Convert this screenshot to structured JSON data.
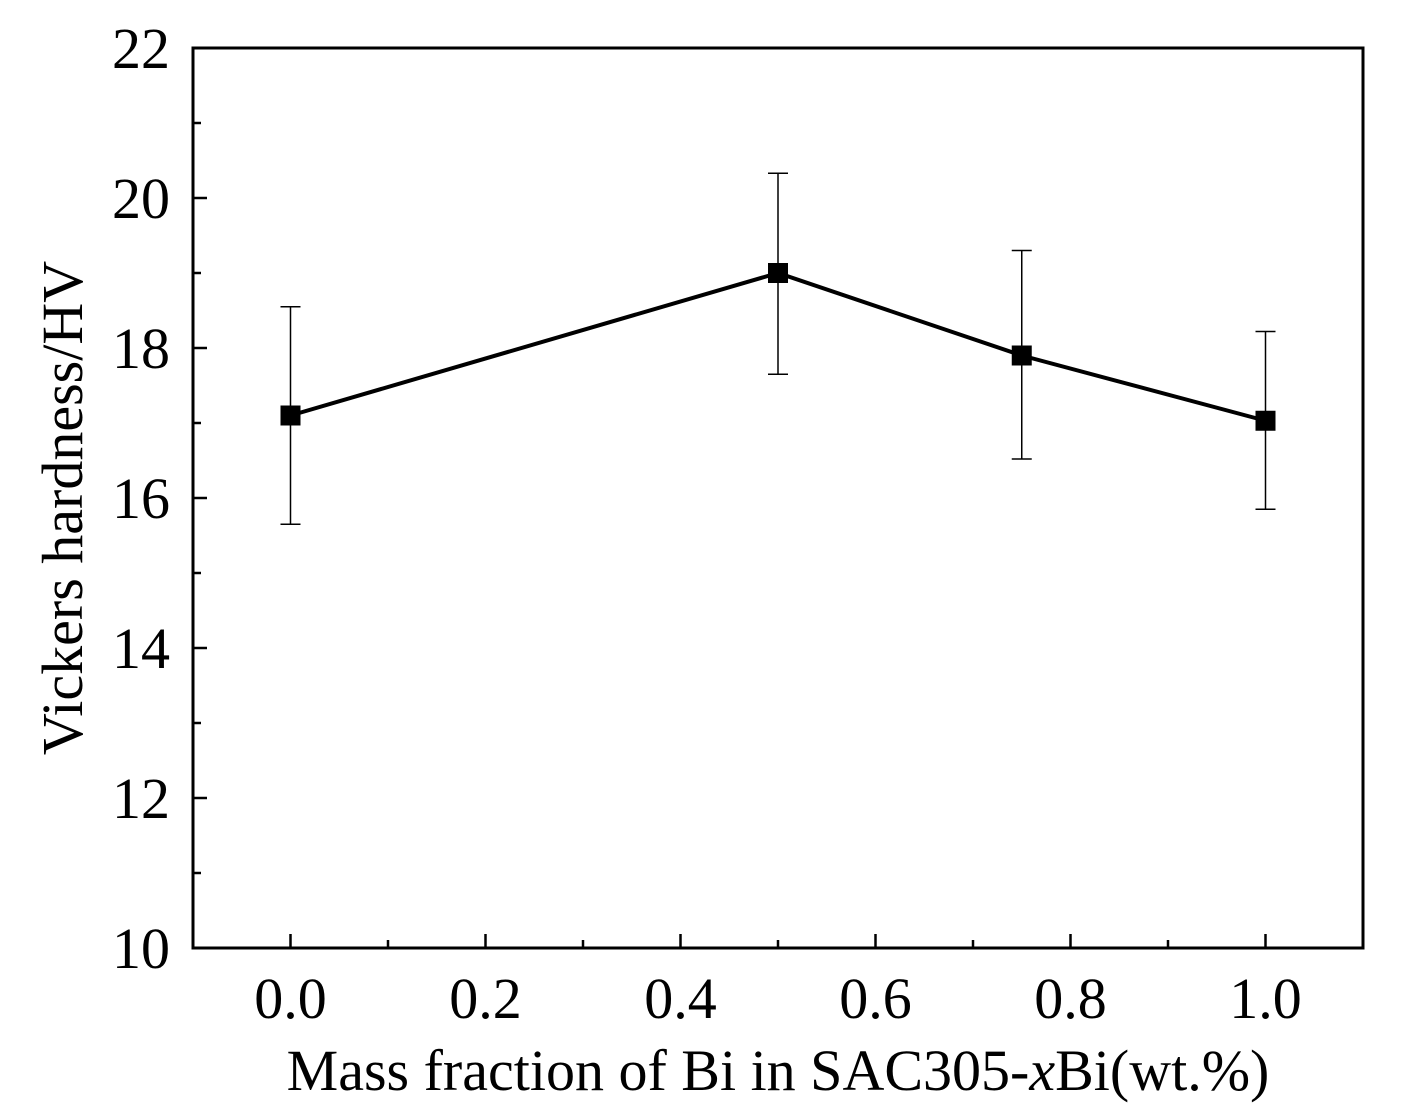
{
  "chart_data": {
    "type": "line",
    "title": "",
    "xlabel_parts": [
      "Mass fraction of Bi in SAC305-",
      "x",
      "Bi(wt.%)"
    ],
    "ylabel": "Vickers hardness/HV",
    "xlim": [
      -0.1,
      1.1
    ],
    "ylim": [
      10,
      22
    ],
    "x_ticks": [
      0.0,
      0.2,
      0.4,
      0.6,
      0.8,
      1.0
    ],
    "x_tick_labels": [
      "0.0",
      "0.2",
      "0.4",
      "0.6",
      "0.8",
      "1.0"
    ],
    "x_minor_ticks": [
      0.1,
      0.3,
      0.5,
      0.7,
      0.9
    ],
    "y_ticks": [
      10,
      12,
      14,
      16,
      18,
      20,
      22
    ],
    "y_tick_labels": [
      "10",
      "12",
      "14",
      "16",
      "18",
      "20",
      "22"
    ],
    "y_minor_ticks": [
      11,
      13,
      15,
      17,
      19,
      21
    ],
    "grid": false,
    "series": [
      {
        "name": "SAC305-xBi",
        "marker": "square",
        "color": "#000000",
        "points": [
          {
            "x": 0.0,
            "y": 17.1,
            "err_low": 15.65,
            "err_high": 18.55
          },
          {
            "x": 0.5,
            "y": 19.0,
            "err_low": 17.65,
            "err_high": 20.33
          },
          {
            "x": 0.75,
            "y": 17.9,
            "err_low": 16.52,
            "err_high": 19.3
          },
          {
            "x": 1.0,
            "y": 17.03,
            "err_low": 15.85,
            "err_high": 18.22
          }
        ]
      }
    ]
  }
}
